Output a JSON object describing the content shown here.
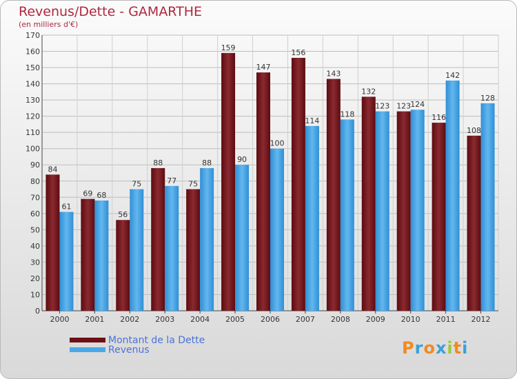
{
  "header": {
    "title": "Revenus/Dette - GAMARTHE",
    "subtitle": "(en milliers d'€)"
  },
  "legend": {
    "items": [
      {
        "label": "Montant de la Dette",
        "color": "#6b0f14"
      },
      {
        "label": "Revenus",
        "color": "#4aa8e8"
      }
    ]
  },
  "logo": {
    "text": "Proxiti"
  },
  "chart_data": {
    "type": "bar",
    "categories": [
      "2000",
      "2001",
      "2002",
      "2003",
      "2004",
      "2005",
      "2006",
      "2007",
      "2008",
      "2009",
      "2010",
      "2011",
      "2012"
    ],
    "series": [
      {
        "name": "Montant de la Dette",
        "color": "#7a1a20",
        "values": [
          84,
          69,
          56,
          88,
          75,
          159,
          147,
          156,
          143,
          132,
          123,
          116,
          108
        ]
      },
      {
        "name": "Revenus",
        "color": "#4aa8e8",
        "values": [
          61,
          68,
          75,
          77,
          88,
          90,
          100,
          114,
          118,
          123,
          124,
          142,
          128
        ]
      }
    ],
    "title": "Revenus/Dette - GAMARTHE",
    "subtitle": "(en milliers d'€)",
    "ylim": [
      0,
      170
    ],
    "yticks": [
      0,
      10,
      20,
      30,
      40,
      50,
      60,
      70,
      80,
      90,
      100,
      110,
      120,
      130,
      140,
      150,
      160,
      170
    ],
    "grid": true,
    "legend_position": "bottom-left"
  }
}
